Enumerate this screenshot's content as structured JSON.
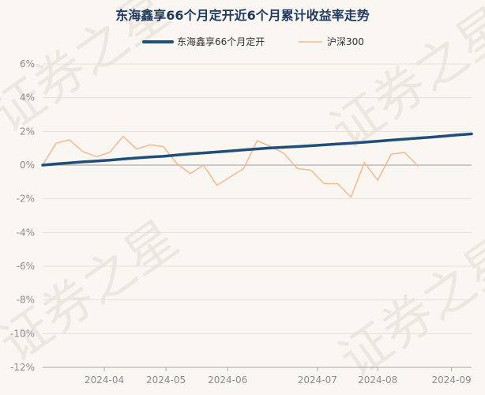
{
  "colors": {
    "background": "#faf7f2",
    "title": "#1f3a5f",
    "fund_line": "#1f4e79",
    "index_line": "#f2b98f",
    "grid": "#e6e1da",
    "zero_line": "#c9c9c9",
    "axis": "#aaaaaa"
  },
  "watermark_text": "证券之星",
  "chart_data": {
    "type": "line",
    "title": "东海鑫享66个月定开近6个月累计收益率走势",
    "xlabel": "",
    "ylabel": "",
    "ylim": [
      -12,
      6
    ],
    "y_ticks": [
      "6%",
      "4%",
      "2%",
      "0%",
      "-2%",
      "-4%",
      "-6%",
      "-8%",
      "-10%",
      "-12%"
    ],
    "y_tick_values": [
      6,
      4,
      2,
      0,
      -2,
      -4,
      -6,
      -8,
      -10,
      -12
    ],
    "x_ticks": [
      "2024-04",
      "2024-05",
      "2024-06",
      "2024-07",
      "2024-08",
      "2024-09"
    ],
    "x_tick_positions": [
      4.6,
      9.2,
      13.8,
      20.5,
      25.0,
      30.5
    ],
    "x_range": [
      0,
      32
    ],
    "grid": true,
    "legend_position": "top-center",
    "series": [
      {
        "name": "东海鑫享66个月定开",
        "x": [
          0,
          1,
          2,
          3,
          4,
          5,
          6,
          7,
          8,
          9,
          10,
          11,
          12,
          13,
          14,
          15,
          16,
          17,
          18,
          19,
          20,
          21,
          22,
          23,
          24,
          25,
          26,
          27,
          28,
          29,
          30,
          31,
          32
        ],
        "values": [
          0.0,
          0.07,
          0.13,
          0.19,
          0.24,
          0.29,
          0.36,
          0.42,
          0.48,
          0.52,
          0.6,
          0.67,
          0.72,
          0.78,
          0.84,
          0.9,
          0.96,
          1.02,
          1.06,
          1.1,
          1.15,
          1.2,
          1.25,
          1.3,
          1.36,
          1.42,
          1.48,
          1.54,
          1.6,
          1.66,
          1.72,
          1.79,
          1.85
        ]
      },
      {
        "name": "沪深300",
        "x": [
          0,
          1,
          2,
          3,
          4,
          5,
          6,
          7,
          8,
          9,
          10,
          11,
          12,
          13,
          14,
          15,
          16,
          17,
          18,
          19,
          20,
          21,
          22,
          23,
          24,
          25,
          26,
          27,
          28,
          29,
          30,
          31,
          32
        ],
        "values": [
          0.0,
          1.3,
          1.5,
          0.8,
          0.5,
          0.75,
          1.7,
          0.95,
          1.2,
          1.1,
          0.1,
          -0.5,
          0.0,
          -1.2,
          -0.7,
          -0.2,
          1.45,
          1.1,
          0.7,
          -0.2,
          -0.3,
          -1.1,
          -1.1,
          -1.9,
          0.15,
          -0.9,
          0.65,
          0.75,
          -0.05,
          null,
          null,
          null,
          null
        ]
      }
    ]
  }
}
